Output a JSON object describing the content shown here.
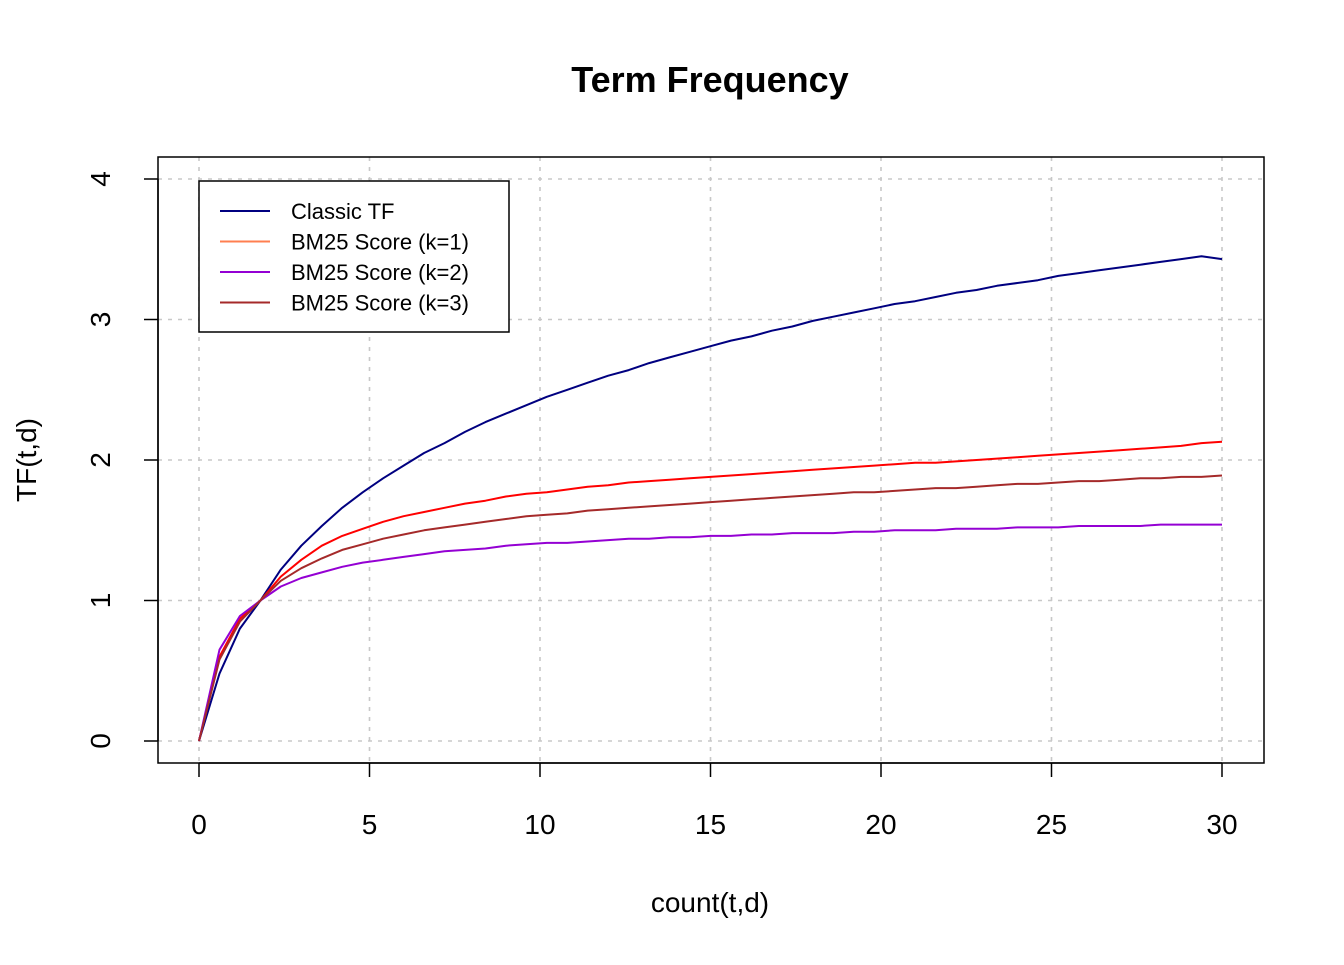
{
  "chart_data": {
    "type": "line",
    "title": "Term Frequency",
    "xlabel": "count(t,d)",
    "ylabel": "TF(t,d)",
    "xlim": [
      0,
      30
    ],
    "ylim": [
      0,
      4
    ],
    "x_ticks": [
      0,
      5,
      10,
      15,
      20,
      25,
      30
    ],
    "y_ticks": [
      0,
      1,
      2,
      3,
      4
    ],
    "grid": true,
    "legend_position": "top-left",
    "x": [
      0,
      0.6,
      1.2,
      1.8,
      2.4,
      3,
      3.6,
      4.2,
      4.8,
      5.4,
      6,
      6.6,
      7.2,
      7.8,
      8.4,
      9,
      9.6,
      10.2,
      10.8,
      11.4,
      12,
      12.6,
      13.2,
      13.8,
      14.4,
      15,
      15.6,
      16.2,
      16.8,
      17.4,
      18,
      18.6,
      19.2,
      19.8,
      20.4,
      21,
      21.6,
      22.2,
      22.8,
      23.4,
      24,
      24.6,
      25.2,
      25.8,
      26.4,
      27,
      27.6,
      28.2,
      28.8,
      29.4,
      30
    ],
    "series": [
      {
        "name": "Classic TF",
        "color": "#000080",
        "values": [
          0,
          0.48,
          0.8,
          1.0,
          1.22,
          1.39,
          1.53,
          1.66,
          1.77,
          1.87,
          1.96,
          2.05,
          2.12,
          2.2,
          2.27,
          2.33,
          2.39,
          2.45,
          2.5,
          2.55,
          2.6,
          2.64,
          2.69,
          2.73,
          2.77,
          2.81,
          2.85,
          2.88,
          2.92,
          2.95,
          2.99,
          3.02,
          3.05,
          3.08,
          3.11,
          3.13,
          3.16,
          3.19,
          3.21,
          3.24,
          3.26,
          3.28,
          3.31,
          3.33,
          3.35,
          3.37,
          3.39,
          3.41,
          3.43,
          3.45,
          3.43
        ]
      },
      {
        "name": "BM25 Score (k=1)",
        "color": "#FF0000",
        "legend_color": "#FF7F50",
        "values": [
          0,
          0.6,
          0.87,
          1.0,
          1.17,
          1.29,
          1.39,
          1.46,
          1.51,
          1.56,
          1.6,
          1.63,
          1.66,
          1.69,
          1.71,
          1.74,
          1.76,
          1.77,
          1.79,
          1.81,
          1.82,
          1.84,
          1.85,
          1.86,
          1.87,
          1.88,
          1.89,
          1.9,
          1.91,
          1.92,
          1.93,
          1.94,
          1.95,
          1.96,
          1.97,
          1.98,
          1.98,
          1.99,
          2.0,
          2.01,
          2.02,
          2.03,
          2.04,
          2.05,
          2.06,
          2.07,
          2.08,
          2.09,
          2.1,
          2.12,
          2.13
        ]
      },
      {
        "name": "BM25 Score (k=2)",
        "color": "#9400D3",
        "values": [
          0,
          0.65,
          0.89,
          1.0,
          1.1,
          1.16,
          1.2,
          1.24,
          1.27,
          1.29,
          1.31,
          1.33,
          1.35,
          1.36,
          1.37,
          1.39,
          1.4,
          1.41,
          1.41,
          1.42,
          1.43,
          1.44,
          1.44,
          1.45,
          1.45,
          1.46,
          1.46,
          1.47,
          1.47,
          1.48,
          1.48,
          1.48,
          1.49,
          1.49,
          1.5,
          1.5,
          1.5,
          1.51,
          1.51,
          1.51,
          1.52,
          1.52,
          1.52,
          1.53,
          1.53,
          1.53,
          1.53,
          1.54,
          1.54,
          1.54,
          1.54
        ]
      },
      {
        "name": "BM25 Score (k=3)",
        "color": "#A52A2A",
        "values": [
          0,
          0.58,
          0.85,
          1.0,
          1.14,
          1.23,
          1.3,
          1.36,
          1.4,
          1.44,
          1.47,
          1.5,
          1.52,
          1.54,
          1.56,
          1.58,
          1.6,
          1.61,
          1.62,
          1.64,
          1.65,
          1.66,
          1.67,
          1.68,
          1.69,
          1.7,
          1.71,
          1.72,
          1.73,
          1.74,
          1.75,
          1.76,
          1.77,
          1.77,
          1.78,
          1.79,
          1.8,
          1.8,
          1.81,
          1.82,
          1.83,
          1.83,
          1.84,
          1.85,
          1.85,
          1.86,
          1.87,
          1.87,
          1.88,
          1.88,
          1.89
        ]
      }
    ]
  }
}
